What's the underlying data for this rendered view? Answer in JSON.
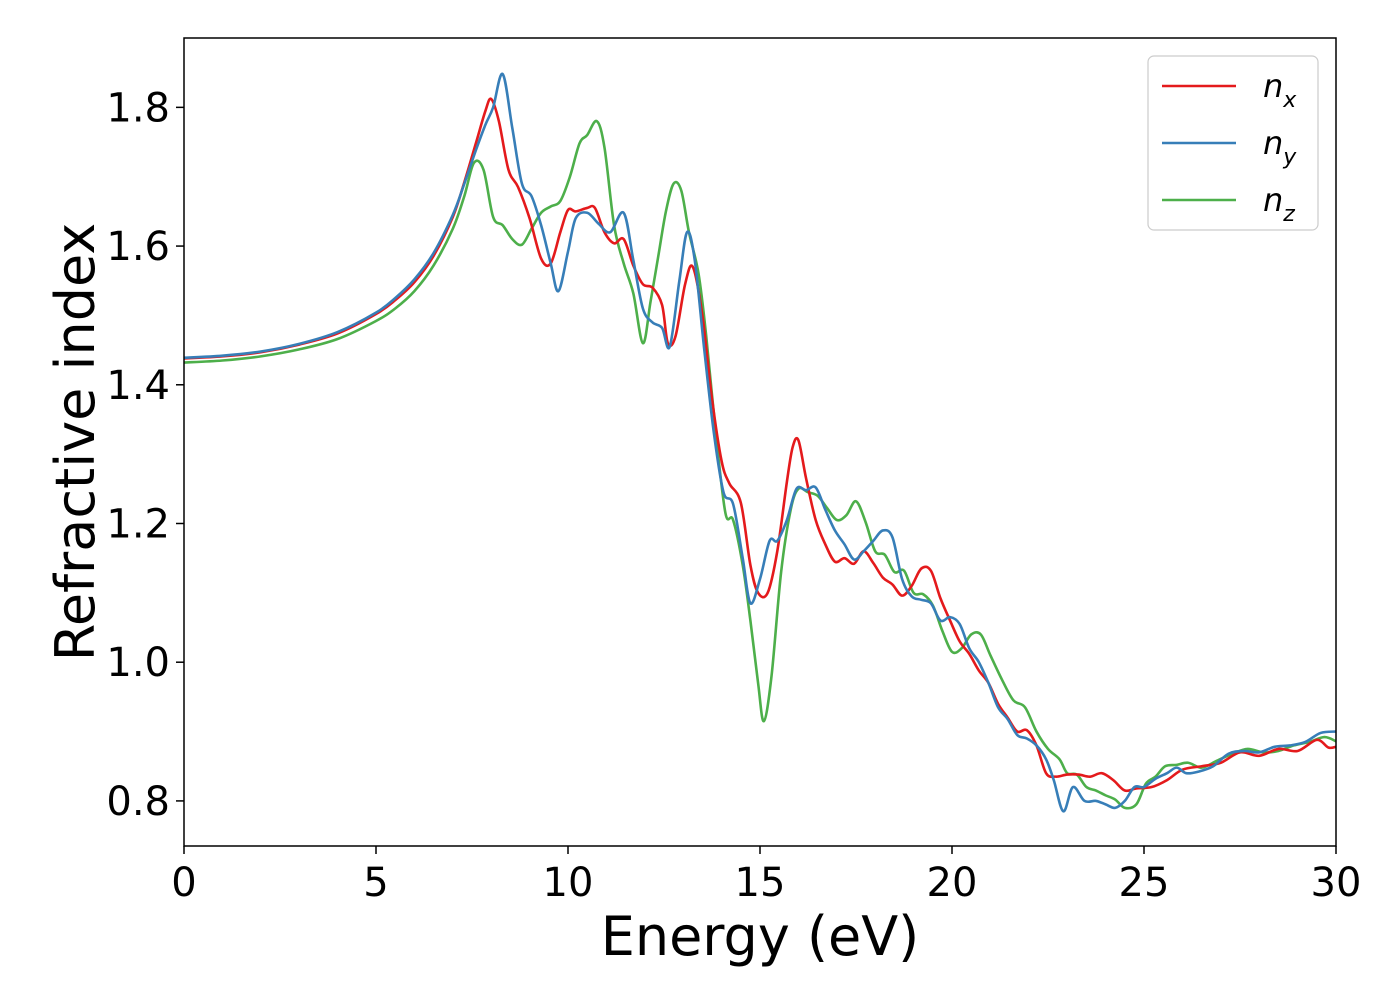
{
  "chart_data": {
    "type": "line",
    "title": "",
    "xlabel": "Energy (eV)",
    "ylabel": "Refractive index",
    "xlim": [
      0,
      30
    ],
    "ylim": [
      0.735,
      1.9
    ],
    "xticks": [
      0,
      5,
      10,
      15,
      20,
      25,
      30
    ],
    "xtick_labels": [
      "0",
      "5",
      "10",
      "15",
      "20",
      "25",
      "30"
    ],
    "yticks": [
      0.8,
      1.0,
      1.2,
      1.4,
      1.6,
      1.8
    ],
    "ytick_labels": [
      "0.8",
      "1.0",
      "1.2",
      "1.4",
      "1.6",
      "1.8"
    ],
    "grid": false,
    "legend_position": "top-right",
    "series": [
      {
        "name": "n_x",
        "label_main": "n",
        "label_sub": "x",
        "color": "#e41a1c",
        "x": [
          0,
          1,
          2,
          3,
          4,
          5,
          5.5,
          6,
          6.5,
          7,
          7.3,
          7.6,
          7.85,
          8.0,
          8.2,
          8.45,
          8.7,
          9.0,
          9.3,
          9.55,
          9.8,
          10.0,
          10.2,
          10.5,
          10.7,
          10.95,
          11.2,
          11.45,
          11.7,
          11.95,
          12.2,
          12.45,
          12.6,
          12.8,
          13.05,
          13.25,
          13.5,
          13.75,
          14.0,
          14.2,
          14.5,
          14.75,
          14.95,
          15.2,
          15.45,
          15.7,
          15.85,
          16.0,
          16.2,
          16.45,
          16.7,
          16.95,
          17.2,
          17.45,
          17.7,
          17.95,
          18.2,
          18.45,
          18.7,
          18.95,
          19.2,
          19.45,
          19.7,
          19.95,
          20.2,
          20.45,
          20.7,
          20.95,
          21.2,
          21.45,
          21.7,
          21.95,
          22.2,
          22.45,
          22.7,
          23.0,
          23.3,
          23.6,
          23.9,
          24.2,
          24.5,
          24.8,
          25.2,
          25.6,
          26.0,
          26.5,
          27.0,
          27.5,
          28.0,
          28.5,
          29.0,
          29.5,
          29.8,
          30.0
        ],
        "y": [
          1.438,
          1.441,
          1.447,
          1.458,
          1.474,
          1.502,
          1.522,
          1.548,
          1.586,
          1.642,
          1.692,
          1.748,
          1.795,
          1.812,
          1.78,
          1.71,
          1.685,
          1.64,
          1.582,
          1.575,
          1.62,
          1.652,
          1.65,
          1.655,
          1.655,
          1.62,
          1.604,
          1.61,
          1.572,
          1.545,
          1.54,
          1.515,
          1.46,
          1.47,
          1.545,
          1.57,
          1.5,
          1.38,
          1.29,
          1.258,
          1.23,
          1.14,
          1.1,
          1.1,
          1.16,
          1.26,
          1.31,
          1.32,
          1.265,
          1.205,
          1.17,
          1.145,
          1.15,
          1.142,
          1.16,
          1.143,
          1.122,
          1.112,
          1.096,
          1.11,
          1.135,
          1.132,
          1.092,
          1.06,
          1.03,
          1.012,
          0.988,
          0.97,
          0.94,
          0.92,
          0.9,
          0.902,
          0.88,
          0.84,
          0.835,
          0.838,
          0.838,
          0.835,
          0.84,
          0.83,
          0.815,
          0.818,
          0.82,
          0.83,
          0.845,
          0.85,
          0.855,
          0.87,
          0.865,
          0.875,
          0.872,
          0.888,
          0.877,
          0.878
        ]
      },
      {
        "name": "n_y",
        "label_main": "n",
        "label_sub": "y",
        "color": "#377eb8",
        "x": [
          0,
          1,
          2,
          3,
          4,
          5,
          5.5,
          6,
          6.5,
          7,
          7.3,
          7.6,
          7.85,
          8.05,
          8.3,
          8.55,
          8.8,
          9.05,
          9.3,
          9.55,
          9.75,
          10.0,
          10.2,
          10.5,
          10.8,
          11.1,
          11.45,
          11.7,
          11.95,
          12.2,
          12.45,
          12.65,
          12.9,
          13.1,
          13.3,
          13.55,
          13.8,
          14.05,
          14.3,
          14.55,
          14.75,
          15.0,
          15.25,
          15.45,
          15.7,
          15.95,
          16.2,
          16.45,
          16.7,
          16.95,
          17.2,
          17.45,
          17.7,
          17.95,
          18.2,
          18.45,
          18.7,
          18.95,
          19.2,
          19.45,
          19.7,
          19.95,
          20.2,
          20.45,
          20.7,
          20.95,
          21.2,
          21.45,
          21.7,
          21.95,
          22.2,
          22.45,
          22.65,
          22.9,
          23.15,
          23.45,
          23.75,
          24.0,
          24.25,
          24.5,
          24.75,
          25.0,
          25.3,
          25.6,
          25.85,
          26.1,
          26.4,
          26.8,
          27.2,
          27.6,
          28.0,
          28.4,
          28.8,
          29.2,
          29.6,
          30.0
        ],
        "y": [
          1.439,
          1.442,
          1.448,
          1.459,
          1.476,
          1.504,
          1.525,
          1.552,
          1.59,
          1.645,
          1.69,
          1.738,
          1.775,
          1.8,
          1.848,
          1.77,
          1.69,
          1.672,
          1.63,
          1.575,
          1.535,
          1.592,
          1.64,
          1.648,
          1.632,
          1.62,
          1.648,
          1.58,
          1.51,
          1.49,
          1.482,
          1.455,
          1.55,
          1.62,
          1.58,
          1.45,
          1.33,
          1.245,
          1.228,
          1.15,
          1.085,
          1.12,
          1.175,
          1.175,
          1.205,
          1.25,
          1.248,
          1.252,
          1.22,
          1.19,
          1.17,
          1.148,
          1.16,
          1.175,
          1.19,
          1.18,
          1.12,
          1.095,
          1.09,
          1.085,
          1.06,
          1.065,
          1.055,
          1.02,
          1.0,
          0.97,
          0.935,
          0.918,
          0.895,
          0.89,
          0.88,
          0.86,
          0.83,
          0.785,
          0.82,
          0.8,
          0.8,
          0.795,
          0.79,
          0.8,
          0.82,
          0.82,
          0.832,
          0.84,
          0.848,
          0.84,
          0.842,
          0.85,
          0.868,
          0.872,
          0.87,
          0.878,
          0.88,
          0.885,
          0.898,
          0.9
        ]
      },
      {
        "name": "n_z",
        "label_main": "n",
        "label_sub": "z",
        "color": "#4daf4a",
        "x": [
          0,
          1,
          2,
          3,
          4,
          5,
          5.5,
          6,
          6.5,
          7,
          7.3,
          7.55,
          7.8,
          8.05,
          8.3,
          8.55,
          8.8,
          9.05,
          9.3,
          9.55,
          9.8,
          10.05,
          10.3,
          10.5,
          10.75,
          10.95,
          11.2,
          11.45,
          11.7,
          11.95,
          12.15,
          12.35,
          12.55,
          12.75,
          12.95,
          13.15,
          13.4,
          13.6,
          13.85,
          14.1,
          14.3,
          14.55,
          14.75,
          14.95,
          15.1,
          15.3,
          15.55,
          15.8,
          16.0,
          16.25,
          16.5,
          16.75,
          17.0,
          17.25,
          17.5,
          17.75,
          18.0,
          18.25,
          18.5,
          18.75,
          19.0,
          19.25,
          19.5,
          19.75,
          20.0,
          20.25,
          20.5,
          20.75,
          21.0,
          21.3,
          21.6,
          21.9,
          22.2,
          22.5,
          22.8,
          23.0,
          23.25,
          23.5,
          23.75,
          24.0,
          24.25,
          24.5,
          24.8,
          25.05,
          25.3,
          25.55,
          25.85,
          26.15,
          26.5,
          26.9,
          27.3,
          27.7,
          28.1,
          28.5,
          28.9,
          29.3,
          29.7,
          30.0
        ],
        "y": [
          1.432,
          1.435,
          1.441,
          1.451,
          1.466,
          1.492,
          1.51,
          1.535,
          1.572,
          1.625,
          1.672,
          1.72,
          1.71,
          1.642,
          1.63,
          1.61,
          1.602,
          1.625,
          1.648,
          1.657,
          1.665,
          1.7,
          1.748,
          1.76,
          1.78,
          1.742,
          1.63,
          1.575,
          1.532,
          1.46,
          1.52,
          1.585,
          1.65,
          1.69,
          1.68,
          1.62,
          1.56,
          1.47,
          1.33,
          1.215,
          1.205,
          1.14,
          1.06,
          0.97,
          0.915,
          0.98,
          1.13,
          1.22,
          1.25,
          1.245,
          1.24,
          1.222,
          1.205,
          1.212,
          1.232,
          1.202,
          1.16,
          1.155,
          1.13,
          1.132,
          1.1,
          1.098,
          1.082,
          1.045,
          1.015,
          1.02,
          1.04,
          1.04,
          1.01,
          0.975,
          0.945,
          0.935,
          0.9,
          0.875,
          0.86,
          0.84,
          0.838,
          0.82,
          0.815,
          0.808,
          0.802,
          0.79,
          0.795,
          0.825,
          0.835,
          0.85,
          0.852,
          0.855,
          0.848,
          0.858,
          0.868,
          0.875,
          0.87,
          0.872,
          0.88,
          0.885,
          0.892,
          0.886
        ]
      }
    ]
  }
}
